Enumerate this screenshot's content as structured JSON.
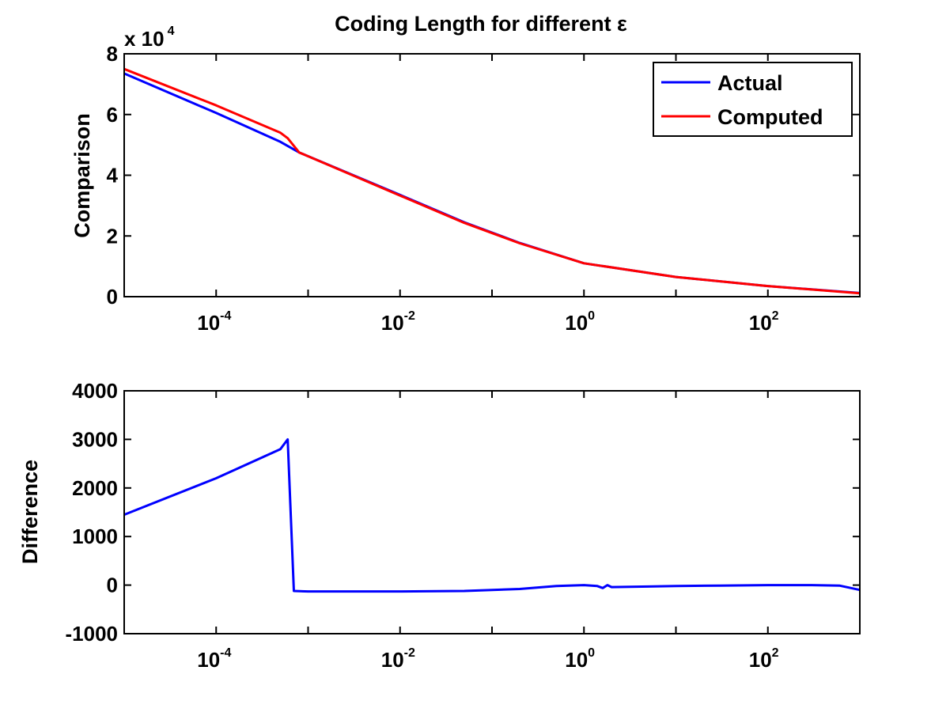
{
  "chart_data": [
    {
      "type": "line",
      "title": "Coding Length for different ε",
      "xlabel": "",
      "ylabel": "Comparison",
      "x_scale": "log",
      "xlim": [
        1e-05,
        1000
      ],
      "ylim": [
        0,
        80000
      ],
      "y_multiplier_label": "x 10",
      "y_multiplier_exponent": "4",
      "y_ticks": [
        0,
        20000,
        40000,
        60000,
        80000
      ],
      "y_tick_labels": [
        "0",
        "2",
        "4",
        "6",
        "8"
      ],
      "x_ticks": [
        0.0001,
        0.01,
        1,
        100
      ],
      "x_tick_labels": [
        {
          "base": "10",
          "exp": "-4"
        },
        {
          "base": "10",
          "exp": "-2"
        },
        {
          "base": "10",
          "exp": "0"
        },
        {
          "base": "10",
          "exp": "2"
        }
      ],
      "legend": {
        "position": "top-right"
      },
      "grid": false,
      "series": [
        {
          "name": "Actual",
          "color": "#0000ff",
          "x": [
            1e-05,
            0.0001,
            0.0005,
            0.0008,
            0.01,
            0.05,
            0.2,
            1,
            10,
            100,
            1000
          ],
          "y": [
            73500,
            60500,
            51000,
            47500,
            33500,
            24500,
            17700,
            11000,
            6500,
            3500,
            1200
          ]
        },
        {
          "name": "Computed",
          "color": "#ff0000",
          "x": [
            1e-05,
            0.0001,
            0.0005,
            0.0006,
            0.0008,
            0.01,
            0.05,
            0.2,
            1,
            10,
            100,
            1000
          ],
          "y": [
            75000,
            63000,
            54000,
            52200,
            47500,
            33300,
            24300,
            17600,
            11000,
            6500,
            3500,
            1100
          ]
        }
      ]
    },
    {
      "type": "line",
      "title": "",
      "xlabel": "",
      "ylabel": "Difference",
      "x_scale": "log",
      "xlim": [
        1e-05,
        1000
      ],
      "ylim": [
        -1000,
        4000
      ],
      "y_ticks": [
        -1000,
        0,
        1000,
        2000,
        3000,
        4000
      ],
      "y_tick_labels": [
        "-1000",
        "0",
        "1000",
        "2000",
        "3000",
        "4000"
      ],
      "x_ticks": [
        0.0001,
        0.01,
        1,
        100
      ],
      "x_tick_labels": [
        {
          "base": "10",
          "exp": "-4"
        },
        {
          "base": "10",
          "exp": "-2"
        },
        {
          "base": "10",
          "exp": "0"
        },
        {
          "base": "10",
          "exp": "2"
        }
      ],
      "grid": false,
      "series": [
        {
          "color": "#0000ff",
          "x": [
            1e-05,
            0.0001,
            0.0005,
            0.0006,
            0.0007,
            0.001,
            0.01,
            0.05,
            0.2,
            0.5,
            1,
            1.4,
            1.6,
            1.8,
            2,
            5,
            10,
            30,
            100,
            300,
            600,
            1000
          ],
          "y": [
            1450,
            2200,
            2800,
            3000,
            -120,
            -130,
            -130,
            -120,
            -80,
            -20,
            0,
            -20,
            -60,
            0,
            -40,
            -30,
            -20,
            -10,
            0,
            0,
            -10,
            -100
          ]
        }
      ]
    }
  ]
}
